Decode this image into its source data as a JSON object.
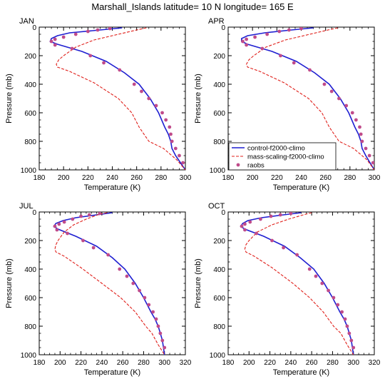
{
  "page": {
    "title": "Marshall_Islands  latitude= 10 N longitude= 165 E"
  },
  "colors": {
    "control": "#1f1fd1",
    "mass_scaling": "#e0201b",
    "raobs": "#c04b8a",
    "axis": "#000000"
  },
  "chart_data": [
    {
      "type": "line",
      "panel": "JAN",
      "title": "JAN",
      "xlabel": "Temperature (K)",
      "ylabel": "Pressure (mb)",
      "xlim": [
        180,
        300
      ],
      "ylim": [
        1000,
        0
      ],
      "xticks": [
        180,
        200,
        220,
        240,
        260,
        280,
        300
      ],
      "yticks": [
        0,
        200,
        400,
        600,
        800,
        1000
      ],
      "y_inverted": true,
      "series": [
        {
          "name": "control-f2000-climo",
          "style": "solid",
          "x": [
            248,
            230,
            205,
            195,
            190,
            189,
            195,
            215,
            235,
            250,
            262,
            271,
            278,
            283,
            286,
            288,
            289,
            292,
            300
          ],
          "y": [
            5,
            20,
            40,
            60,
            80,
            100,
            120,
            170,
            240,
            320,
            400,
            500,
            600,
            700,
            750,
            800,
            850,
            900,
            1000
          ]
        },
        {
          "name": "mass-scaling-f2000-climo",
          "style": "dashed",
          "x": [
            268,
            260,
            245,
            225,
            210,
            200,
            196,
            194,
            195,
            205,
            225,
            245,
            256,
            262,
            270,
            282,
            293,
            300
          ],
          "y": [
            5,
            20,
            50,
            90,
            140,
            200,
            230,
            260,
            280,
            310,
            390,
            500,
            600,
            700,
            800,
            850,
            930,
            1000
          ]
        },
        {
          "name": "raobs",
          "style": "markers",
          "x": [
            238,
            228,
            220,
            210,
            200,
            193,
            190,
            193,
            207,
            222,
            233,
            246,
            258,
            264,
            270,
            276,
            281,
            284,
            287,
            288,
            289,
            292,
            295,
            298
          ],
          "y": [
            10,
            20,
            30,
            50,
            70,
            85,
            100,
            125,
            150,
            200,
            250,
            300,
            400,
            450,
            500,
            550,
            600,
            650,
            700,
            750,
            800,
            850,
            900,
            950
          ]
        }
      ]
    },
    {
      "type": "line",
      "panel": "APR",
      "title": "APR",
      "xlabel": "Temperature (K)",
      "ylabel": "Pressure (mb)",
      "xlim": [
        180,
        300
      ],
      "ylim": [
        1000,
        0
      ],
      "xticks": [
        180,
        200,
        220,
        240,
        260,
        280,
        300
      ],
      "yticks": [
        0,
        200,
        400,
        600,
        800,
        1000
      ],
      "y_inverted": true,
      "series": [
        {
          "name": "control-f2000-climo",
          "style": "solid",
          "x": [
            250,
            232,
            210,
            196,
            191,
            191,
            196,
            216,
            236,
            251,
            263,
            272,
            279,
            284,
            287,
            289,
            290,
            293,
            300
          ],
          "y": [
            5,
            20,
            40,
            60,
            80,
            100,
            120,
            170,
            240,
            320,
            400,
            500,
            600,
            700,
            750,
            800,
            850,
            900,
            1000
          ]
        },
        {
          "name": "mass-scaling-f2000-climo",
          "style": "dashed",
          "x": [
            270,
            262,
            247,
            227,
            211,
            201,
            197,
            195,
            196,
            206,
            226,
            246,
            257,
            263,
            271,
            283,
            294,
            300
          ],
          "y": [
            5,
            20,
            50,
            90,
            140,
            200,
            230,
            260,
            280,
            310,
            390,
            500,
            600,
            700,
            800,
            850,
            930,
            1000
          ]
        },
        {
          "name": "raobs",
          "style": "markers",
          "x": [
            240,
            230,
            222,
            212,
            202,
            195,
            192,
            195,
            208,
            223,
            234,
            247,
            259,
            265,
            271,
            277,
            282,
            285,
            288,
            289,
            290,
            293,
            296,
            299
          ],
          "y": [
            10,
            20,
            30,
            50,
            70,
            85,
            100,
            125,
            150,
            200,
            250,
            300,
            400,
            450,
            500,
            550,
            600,
            650,
            700,
            750,
            800,
            850,
            900,
            950
          ]
        }
      ]
    },
    {
      "type": "line",
      "panel": "JUL",
      "title": "JUL",
      "xlabel": "Temperature (K)",
      "ylabel": "Pressure (mb)",
      "xlim": [
        180,
        320
      ],
      "ylim": [
        1000,
        0
      ],
      "xticks": [
        180,
        200,
        220,
        240,
        260,
        280,
        300,
        320
      ],
      "yticks": [
        0,
        200,
        400,
        600,
        800,
        1000
      ],
      "y_inverted": true,
      "series": [
        {
          "name": "control-f2000-climo",
          "style": "solid",
          "x": [
            250,
            235,
            215,
            203,
            196,
            194,
            198,
            215,
            235,
            250,
            262,
            272,
            280,
            287,
            291,
            294,
            296,
            298,
            300
          ],
          "y": [
            5,
            20,
            40,
            60,
            80,
            100,
            120,
            170,
            240,
            320,
            400,
            500,
            600,
            700,
            750,
            800,
            850,
            900,
            1000
          ]
        },
        {
          "name": "mass-scaling-f2000-climo",
          "style": "dashed",
          "x": [
            245,
            236,
            225,
            213,
            204,
            198,
            196,
            195,
            196,
            204,
            220,
            240,
            258,
            272,
            282,
            288,
            294,
            300
          ],
          "y": [
            5,
            20,
            50,
            90,
            140,
            200,
            230,
            260,
            280,
            310,
            390,
            500,
            600,
            700,
            800,
            850,
            930,
            1000
          ]
        },
        {
          "name": "raobs",
          "style": "markers",
          "x": [
            238,
            228,
            220,
            212,
            204,
            199,
            195,
            197,
            207,
            222,
            232,
            246,
            257,
            264,
            270,
            276,
            281,
            285,
            289,
            292,
            294,
            296,
            298,
            300
          ],
          "y": [
            10,
            20,
            30,
            50,
            70,
            85,
            100,
            125,
            150,
            200,
            250,
            300,
            400,
            450,
            500,
            550,
            600,
            650,
            700,
            750,
            800,
            850,
            900,
            950
          ]
        }
      ]
    },
    {
      "type": "line",
      "panel": "OCT",
      "title": "OCT",
      "xlabel": "Temperature (K)",
      "ylabel": "Pressure (mb)",
      "xlim": [
        180,
        320
      ],
      "ylim": [
        1000,
        0
      ],
      "xticks": [
        180,
        200,
        220,
        240,
        260,
        280,
        300,
        320
      ],
      "yticks": [
        0,
        200,
        400,
        600,
        800,
        1000
      ],
      "y_inverted": true,
      "series": [
        {
          "name": "control-f2000-climo",
          "style": "solid",
          "x": [
            250,
            233,
            212,
            199,
            194,
            192,
            196,
            214,
            234,
            249,
            262,
            272,
            280,
            287,
            291,
            294,
            296,
            298,
            300
          ],
          "y": [
            5,
            20,
            40,
            60,
            80,
            100,
            120,
            170,
            240,
            320,
            400,
            500,
            600,
            700,
            750,
            800,
            850,
            900,
            1000
          ]
        },
        {
          "name": "mass-scaling-f2000-climo",
          "style": "dashed",
          "x": [
            260,
            252,
            238,
            222,
            208,
            200,
            197,
            196,
            197,
            205,
            222,
            242,
            258,
            271,
            281,
            288,
            294,
            300
          ],
          "y": [
            5,
            20,
            50,
            90,
            140,
            200,
            230,
            260,
            280,
            310,
            390,
            500,
            600,
            700,
            800,
            850,
            930,
            1000
          ]
        },
        {
          "name": "raobs",
          "style": "markers",
          "x": [
            240,
            230,
            221,
            211,
            201,
            196,
            193,
            196,
            207,
            222,
            233,
            246,
            258,
            264,
            270,
            276,
            281,
            285,
            289,
            292,
            294,
            296,
            298,
            300
          ],
          "y": [
            10,
            20,
            30,
            50,
            70,
            85,
            100,
            125,
            150,
            200,
            250,
            300,
            400,
            450,
            500,
            550,
            600,
            650,
            700,
            750,
            800,
            850,
            900,
            950
          ]
        }
      ]
    }
  ],
  "legend": {
    "placement": "bottom-left of APR panel",
    "entries": [
      "control-f2000-climo",
      "mass-scaling-f2000-climo",
      "raobs"
    ]
  }
}
